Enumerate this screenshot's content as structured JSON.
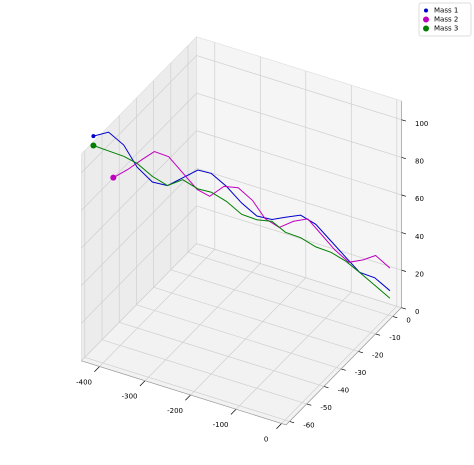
{
  "chart_data": {
    "type": "line3d",
    "series": [
      {
        "name": "Mass 1",
        "color": "#0000cc",
        "x": [
          -440,
          -418,
          -396,
          -374,
          -352,
          -330,
          -308,
          -286,
          -264,
          -242,
          -220,
          -198,
          -176,
          -154,
          -132,
          -110,
          -88,
          -66,
          -44,
          -22,
          0
        ],
        "y": [
          -55,
          -52,
          -49,
          -47,
          -44,
          -41,
          -38,
          -35,
          -33,
          -30,
          -27,
          -24,
          -21,
          -19,
          -16,
          -13,
          -10,
          -7,
          -5,
          -2,
          1
        ],
        "z": [
          113,
          114,
          106,
          94,
          85,
          82,
          85,
          88,
          86,
          78,
          68,
          60,
          57,
          58,
          58,
          52,
          42,
          32,
          24,
          20,
          12
        ]
      },
      {
        "name": "Mass 2",
        "color": "#bf00bf",
        "x": [
          -400,
          -380,
          -360,
          -340,
          -320,
          -300,
          -280,
          -260,
          -240,
          -220,
          -200,
          -180,
          -160,
          -140,
          -120,
          -100,
          -80,
          -60,
          -40,
          -20,
          0
        ],
        "y": [
          -54,
          -51,
          -48,
          -46,
          -43,
          -40,
          -37,
          -35,
          -32,
          -29,
          -26,
          -24,
          -21,
          -18,
          -15,
          -13,
          -10,
          -7,
          -4,
          -2,
          1
        ],
        "z": [
          93,
          96,
          100,
          104,
          100,
          90,
          80,
          76,
          80,
          78,
          70,
          60,
          54,
          56,
          56,
          48,
          38,
          30,
          30,
          32,
          24
        ]
      },
      {
        "name": "Mass 3",
        "color": "#007f00",
        "x": [
          -440,
          -418,
          -396,
          -374,
          -352,
          -330,
          -308,
          -286,
          -264,
          -242,
          -220,
          -198,
          -176,
          -154,
          -132,
          -110,
          -88,
          -66,
          -44,
          -22,
          0
        ],
        "y": [
          -55,
          -52,
          -49,
          -47,
          -44,
          -41,
          -38,
          -35,
          -33,
          -30,
          -27,
          -24,
          -21,
          -19,
          -16,
          -13,
          -10,
          -7,
          -5,
          -2,
          1
        ],
        "z": [
          108,
          104,
          100,
          96,
          88,
          82,
          84,
          78,
          76,
          70,
          62,
          58,
          56,
          50,
          46,
          40,
          36,
          30,
          24,
          16,
          8
        ]
      }
    ],
    "xlim": [
      -440,
      10
    ],
    "ylim": [
      -62,
      5
    ],
    "zlim": [
      0,
      110
    ],
    "xticks": [
      -400,
      -300,
      -200,
      -100,
      0
    ],
    "yticks": [
      0,
      -10,
      -20,
      -30,
      -40,
      -50,
      -60
    ],
    "zticks": [
      0,
      20,
      40,
      60,
      80,
      100
    ],
    "grid": true,
    "legend": "upper right"
  }
}
